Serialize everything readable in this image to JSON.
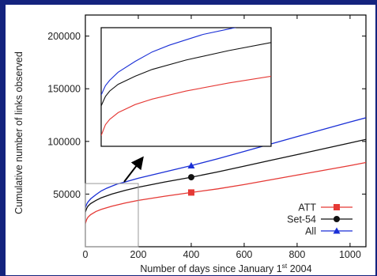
{
  "chart_data": {
    "type": "line",
    "title": "",
    "xlabel": "Number of days since January 1",
    "xlabel_superscript": "st",
    "xlabel_suffix": " 2004",
    "ylabel": "Cumulative number of links observed",
    "xlim": [
      0,
      1060
    ],
    "ylim": [
      0,
      220000
    ],
    "xticks": [
      0,
      200,
      400,
      600,
      800,
      1000
    ],
    "yticks": [
      50000,
      100000,
      150000,
      200000
    ],
    "xtick_labels": [
      "0",
      "200",
      "400",
      "600",
      "800",
      "1000"
    ],
    "ytick_labels": [
      "50000",
      "100000",
      "150000",
      "200000"
    ],
    "grid": false,
    "legend_position": "bottom-right",
    "series": [
      {
        "name": "ATT",
        "color": "#e53935",
        "marker": "square",
        "marker_x": 400,
        "x": [
          0,
          5,
          10,
          20,
          40,
          60,
          100,
          150,
          200,
          300,
          400,
          500,
          600,
          700,
          800,
          900,
          1000,
          1060
        ],
        "y": [
          22000,
          26000,
          28000,
          30500,
          33500,
          35500,
          38500,
          41500,
          44000,
          48000,
          51500,
          55000,
          59000,
          63500,
          68000,
          72500,
          77000,
          80000
        ]
      },
      {
        "name": "Set-54",
        "color": "#111111",
        "marker": "circle",
        "marker_x": 400,
        "x": [
          0,
          5,
          10,
          20,
          40,
          60,
          100,
          150,
          200,
          300,
          400,
          500,
          600,
          700,
          800,
          900,
          1000,
          1060
        ],
        "y": [
          33000,
          36500,
          38500,
          41000,
          44000,
          46500,
          50000,
          53500,
          56500,
          61500,
          66000,
          71000,
          76500,
          82000,
          87500,
          93000,
          98500,
          102000
        ]
      },
      {
        "name": "All",
        "color": "#1a2fd6",
        "marker": "triangle",
        "marker_x": 400,
        "x": [
          0,
          5,
          10,
          20,
          40,
          60,
          80,
          100,
          120,
          150,
          200,
          300,
          400,
          500,
          600,
          700,
          800,
          900,
          1000,
          1060
        ],
        "y": [
          37000,
          40500,
          42500,
          45500,
          49500,
          53000,
          55500,
          57500,
          59500,
          61500,
          65000,
          71000,
          77000,
          83500,
          90500,
          97500,
          104500,
          111500,
          118500,
          122500
        ]
      }
    ],
    "inset": {
      "source_xlim": [
        0,
        200
      ],
      "source_ylim": [
        0,
        60000
      ]
    }
  }
}
